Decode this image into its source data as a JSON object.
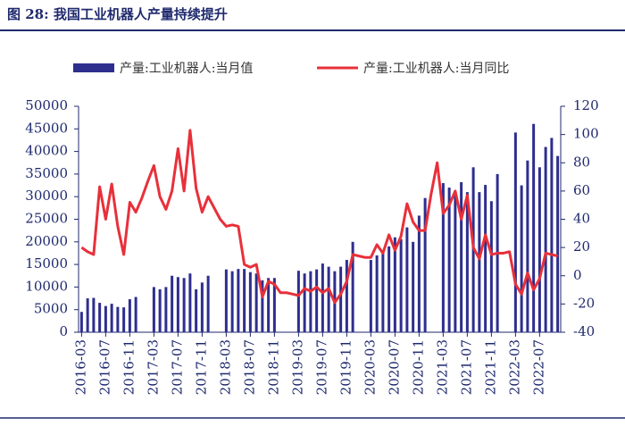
{
  "chart_data": {
    "type": "bar_line",
    "title": "图 28:  我国工业机器人产量持续提升",
    "categories": [
      "2016-03",
      null,
      null,
      null,
      "2016-07",
      null,
      null,
      null,
      "2016-11",
      null,
      null,
      null,
      "2017-03",
      null,
      null,
      null,
      "2017-07",
      null,
      null,
      null,
      "2017-11",
      null,
      null,
      null,
      "2018-03",
      null,
      null,
      null,
      "2018-07",
      null,
      null,
      null,
      "2018-11",
      null,
      null,
      null,
      "2019-03",
      null,
      null,
      null,
      "2019-07",
      null,
      null,
      null,
      "2019-11",
      null,
      null,
      null,
      "2020-03",
      null,
      null,
      null,
      "2020-07",
      null,
      null,
      null,
      "2020-11",
      null,
      null,
      null,
      "2021-03",
      null,
      null,
      null,
      "2021-07",
      null,
      null,
      null,
      "2021-11",
      null,
      null,
      null,
      "2022-03",
      null,
      null,
      null,
      "2022-07",
      null,
      null,
      null
    ],
    "series": [
      {
        "name": "产量:工业机器人:当月值",
        "color": "#2e2e8e",
        "kind": "bar",
        "axis": "y",
        "values": [
          4500,
          7500,
          7600,
          6500,
          5800,
          6300,
          5600,
          5500,
          7300,
          7800,
          null,
          null,
          10000,
          9500,
          10000,
          12500,
          12200,
          12000,
          13000,
          9500,
          11000,
          12500,
          null,
          null,
          13900,
          13500,
          14000,
          14000,
          13300,
          13000,
          11500,
          12000,
          12000,
          null,
          null,
          null,
          13600,
          13000,
          13500,
          13900,
          15200,
          14500,
          13500,
          14500,
          16000,
          20000,
          null,
          null,
          16000,
          17000,
          17800,
          19000,
          21000,
          20600,
          23200,
          20000,
          25800,
          29700,
          null,
          null,
          33000,
          32000,
          30900,
          33200,
          31000,
          36500,
          31000,
          32600,
          29000,
          35000,
          null,
          null,
          44200,
          32500,
          38000,
          46100,
          36500,
          41000,
          43000,
          39000
        ]
      },
      {
        "name": "产量:工业机器人:当月同比",
        "color": "#e8303a",
        "kind": "line",
        "axis": "y2",
        "values": [
          20,
          17,
          15,
          63,
          40,
          65,
          35,
          15,
          52,
          45,
          55,
          67,
          78,
          56,
          47,
          60,
          90,
          60,
          103,
          62,
          45,
          56,
          48,
          40,
          35,
          36,
          35,
          8,
          6,
          8,
          -15,
          -4,
          -6,
          -12,
          -12,
          -13,
          -14,
          -9,
          -11,
          -8,
          -12,
          -9,
          -19,
          -13,
          -4,
          15,
          14,
          13,
          13,
          22,
          16,
          29,
          18,
          28,
          51,
          38,
          32,
          32,
          58,
          80,
          44,
          50,
          60,
          40,
          57,
          20,
          12,
          29,
          15,
          16,
          16,
          17,
          -6,
          -13,
          2,
          -10,
          -2,
          16,
          15,
          14
        ]
      }
    ],
    "ylim": [
      0,
      50000
    ],
    "yticks": [
      0,
      5000,
      10000,
      15000,
      20000,
      25000,
      30000,
      35000,
      40000,
      45000,
      50000
    ],
    "y2lim": [
      -40,
      120
    ],
    "y2ticks": [
      -40,
      -20,
      0,
      20,
      40,
      60,
      80,
      100,
      120
    ]
  }
}
